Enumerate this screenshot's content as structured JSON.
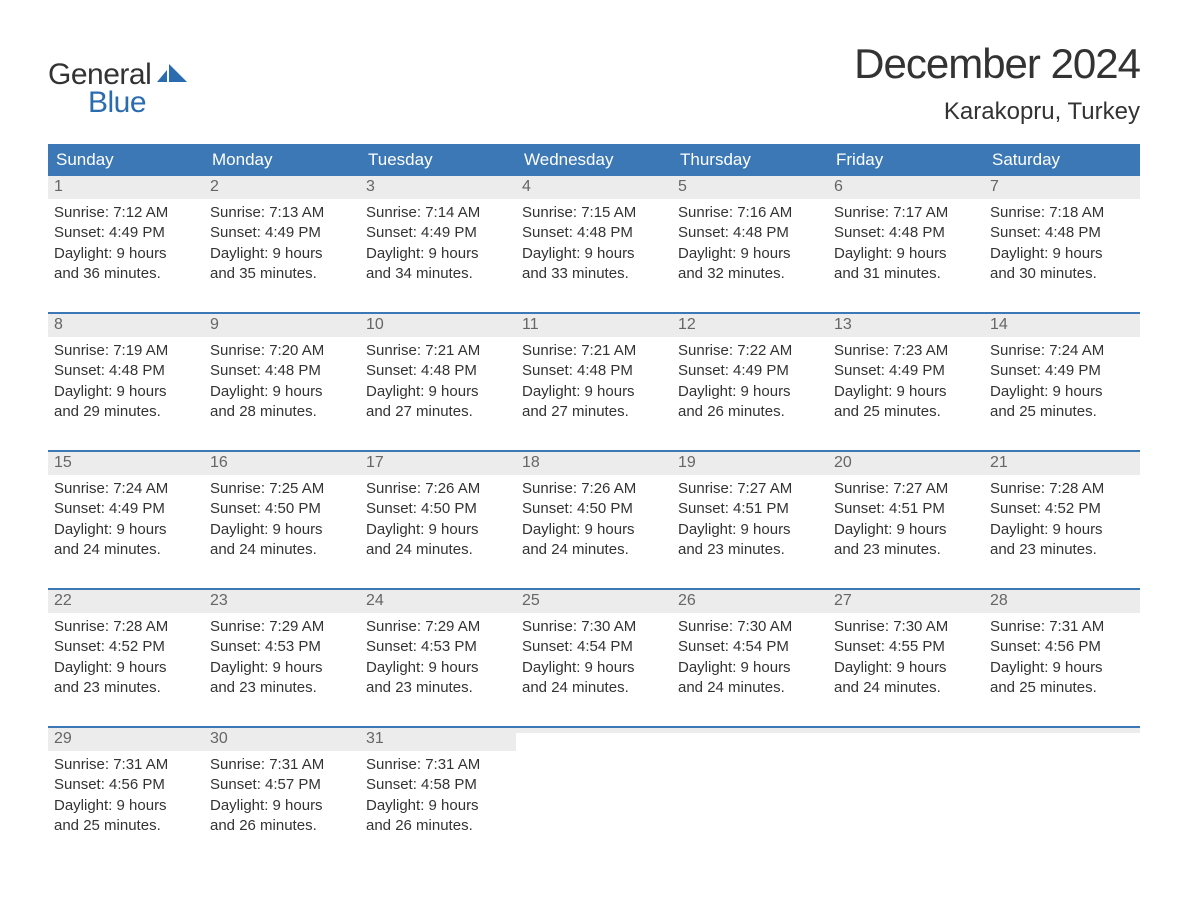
{
  "brand": {
    "word1": "General",
    "word2": "Blue",
    "text_color": "#333333",
    "accent_color": "#2b6cb0"
  },
  "header": {
    "month_title": "December 2024",
    "location": "Karakopru, Turkey"
  },
  "styling": {
    "header_bg": "#3b78b5",
    "header_text": "#ffffff",
    "daynum_bg": "#ececec",
    "daynum_color": "#666666",
    "week_border": "#3b78b5",
    "body_text": "#333333",
    "page_bg": "#ffffff",
    "font_family": "Arial, Helvetica, sans-serif",
    "month_title_fontsize": 42,
    "location_fontsize": 24,
    "weekday_fontsize": 17,
    "body_fontsize": 15
  },
  "weekdays": [
    "Sunday",
    "Monday",
    "Tuesday",
    "Wednesday",
    "Thursday",
    "Friday",
    "Saturday"
  ],
  "weeks": [
    [
      {
        "day": "1",
        "sunrise": "Sunrise: 7:12 AM",
        "sunset": "Sunset: 4:49 PM",
        "dl1": "Daylight: 9 hours",
        "dl2": "and 36 minutes."
      },
      {
        "day": "2",
        "sunrise": "Sunrise: 7:13 AM",
        "sunset": "Sunset: 4:49 PM",
        "dl1": "Daylight: 9 hours",
        "dl2": "and 35 minutes."
      },
      {
        "day": "3",
        "sunrise": "Sunrise: 7:14 AM",
        "sunset": "Sunset: 4:49 PM",
        "dl1": "Daylight: 9 hours",
        "dl2": "and 34 minutes."
      },
      {
        "day": "4",
        "sunrise": "Sunrise: 7:15 AM",
        "sunset": "Sunset: 4:48 PM",
        "dl1": "Daylight: 9 hours",
        "dl2": "and 33 minutes."
      },
      {
        "day": "5",
        "sunrise": "Sunrise: 7:16 AM",
        "sunset": "Sunset: 4:48 PM",
        "dl1": "Daylight: 9 hours",
        "dl2": "and 32 minutes."
      },
      {
        "day": "6",
        "sunrise": "Sunrise: 7:17 AM",
        "sunset": "Sunset: 4:48 PM",
        "dl1": "Daylight: 9 hours",
        "dl2": "and 31 minutes."
      },
      {
        "day": "7",
        "sunrise": "Sunrise: 7:18 AM",
        "sunset": "Sunset: 4:48 PM",
        "dl1": "Daylight: 9 hours",
        "dl2": "and 30 minutes."
      }
    ],
    [
      {
        "day": "8",
        "sunrise": "Sunrise: 7:19 AM",
        "sunset": "Sunset: 4:48 PM",
        "dl1": "Daylight: 9 hours",
        "dl2": "and 29 minutes."
      },
      {
        "day": "9",
        "sunrise": "Sunrise: 7:20 AM",
        "sunset": "Sunset: 4:48 PM",
        "dl1": "Daylight: 9 hours",
        "dl2": "and 28 minutes."
      },
      {
        "day": "10",
        "sunrise": "Sunrise: 7:21 AM",
        "sunset": "Sunset: 4:48 PM",
        "dl1": "Daylight: 9 hours",
        "dl2": "and 27 minutes."
      },
      {
        "day": "11",
        "sunrise": "Sunrise: 7:21 AM",
        "sunset": "Sunset: 4:48 PM",
        "dl1": "Daylight: 9 hours",
        "dl2": "and 27 minutes."
      },
      {
        "day": "12",
        "sunrise": "Sunrise: 7:22 AM",
        "sunset": "Sunset: 4:49 PM",
        "dl1": "Daylight: 9 hours",
        "dl2": "and 26 minutes."
      },
      {
        "day": "13",
        "sunrise": "Sunrise: 7:23 AM",
        "sunset": "Sunset: 4:49 PM",
        "dl1": "Daylight: 9 hours",
        "dl2": "and 25 minutes."
      },
      {
        "day": "14",
        "sunrise": "Sunrise: 7:24 AM",
        "sunset": "Sunset: 4:49 PM",
        "dl1": "Daylight: 9 hours",
        "dl2": "and 25 minutes."
      }
    ],
    [
      {
        "day": "15",
        "sunrise": "Sunrise: 7:24 AM",
        "sunset": "Sunset: 4:49 PM",
        "dl1": "Daylight: 9 hours",
        "dl2": "and 24 minutes."
      },
      {
        "day": "16",
        "sunrise": "Sunrise: 7:25 AM",
        "sunset": "Sunset: 4:50 PM",
        "dl1": "Daylight: 9 hours",
        "dl2": "and 24 minutes."
      },
      {
        "day": "17",
        "sunrise": "Sunrise: 7:26 AM",
        "sunset": "Sunset: 4:50 PM",
        "dl1": "Daylight: 9 hours",
        "dl2": "and 24 minutes."
      },
      {
        "day": "18",
        "sunrise": "Sunrise: 7:26 AM",
        "sunset": "Sunset: 4:50 PM",
        "dl1": "Daylight: 9 hours",
        "dl2": "and 24 minutes."
      },
      {
        "day": "19",
        "sunrise": "Sunrise: 7:27 AM",
        "sunset": "Sunset: 4:51 PM",
        "dl1": "Daylight: 9 hours",
        "dl2": "and 23 minutes."
      },
      {
        "day": "20",
        "sunrise": "Sunrise: 7:27 AM",
        "sunset": "Sunset: 4:51 PM",
        "dl1": "Daylight: 9 hours",
        "dl2": "and 23 minutes."
      },
      {
        "day": "21",
        "sunrise": "Sunrise: 7:28 AM",
        "sunset": "Sunset: 4:52 PM",
        "dl1": "Daylight: 9 hours",
        "dl2": "and 23 minutes."
      }
    ],
    [
      {
        "day": "22",
        "sunrise": "Sunrise: 7:28 AM",
        "sunset": "Sunset: 4:52 PM",
        "dl1": "Daylight: 9 hours",
        "dl2": "and 23 minutes."
      },
      {
        "day": "23",
        "sunrise": "Sunrise: 7:29 AM",
        "sunset": "Sunset: 4:53 PM",
        "dl1": "Daylight: 9 hours",
        "dl2": "and 23 minutes."
      },
      {
        "day": "24",
        "sunrise": "Sunrise: 7:29 AM",
        "sunset": "Sunset: 4:53 PM",
        "dl1": "Daylight: 9 hours",
        "dl2": "and 23 minutes."
      },
      {
        "day": "25",
        "sunrise": "Sunrise: 7:30 AM",
        "sunset": "Sunset: 4:54 PM",
        "dl1": "Daylight: 9 hours",
        "dl2": "and 24 minutes."
      },
      {
        "day": "26",
        "sunrise": "Sunrise: 7:30 AM",
        "sunset": "Sunset: 4:54 PM",
        "dl1": "Daylight: 9 hours",
        "dl2": "and 24 minutes."
      },
      {
        "day": "27",
        "sunrise": "Sunrise: 7:30 AM",
        "sunset": "Sunset: 4:55 PM",
        "dl1": "Daylight: 9 hours",
        "dl2": "and 24 minutes."
      },
      {
        "day": "28",
        "sunrise": "Sunrise: 7:31 AM",
        "sunset": "Sunset: 4:56 PM",
        "dl1": "Daylight: 9 hours",
        "dl2": "and 25 minutes."
      }
    ],
    [
      {
        "day": "29",
        "sunrise": "Sunrise: 7:31 AM",
        "sunset": "Sunset: 4:56 PM",
        "dl1": "Daylight: 9 hours",
        "dl2": "and 25 minutes."
      },
      {
        "day": "30",
        "sunrise": "Sunrise: 7:31 AM",
        "sunset": "Sunset: 4:57 PM",
        "dl1": "Daylight: 9 hours",
        "dl2": "and 26 minutes."
      },
      {
        "day": "31",
        "sunrise": "Sunrise: 7:31 AM",
        "sunset": "Sunset: 4:58 PM",
        "dl1": "Daylight: 9 hours",
        "dl2": "and 26 minutes."
      },
      {
        "empty": true
      },
      {
        "empty": true
      },
      {
        "empty": true
      },
      {
        "empty": true
      }
    ]
  ]
}
